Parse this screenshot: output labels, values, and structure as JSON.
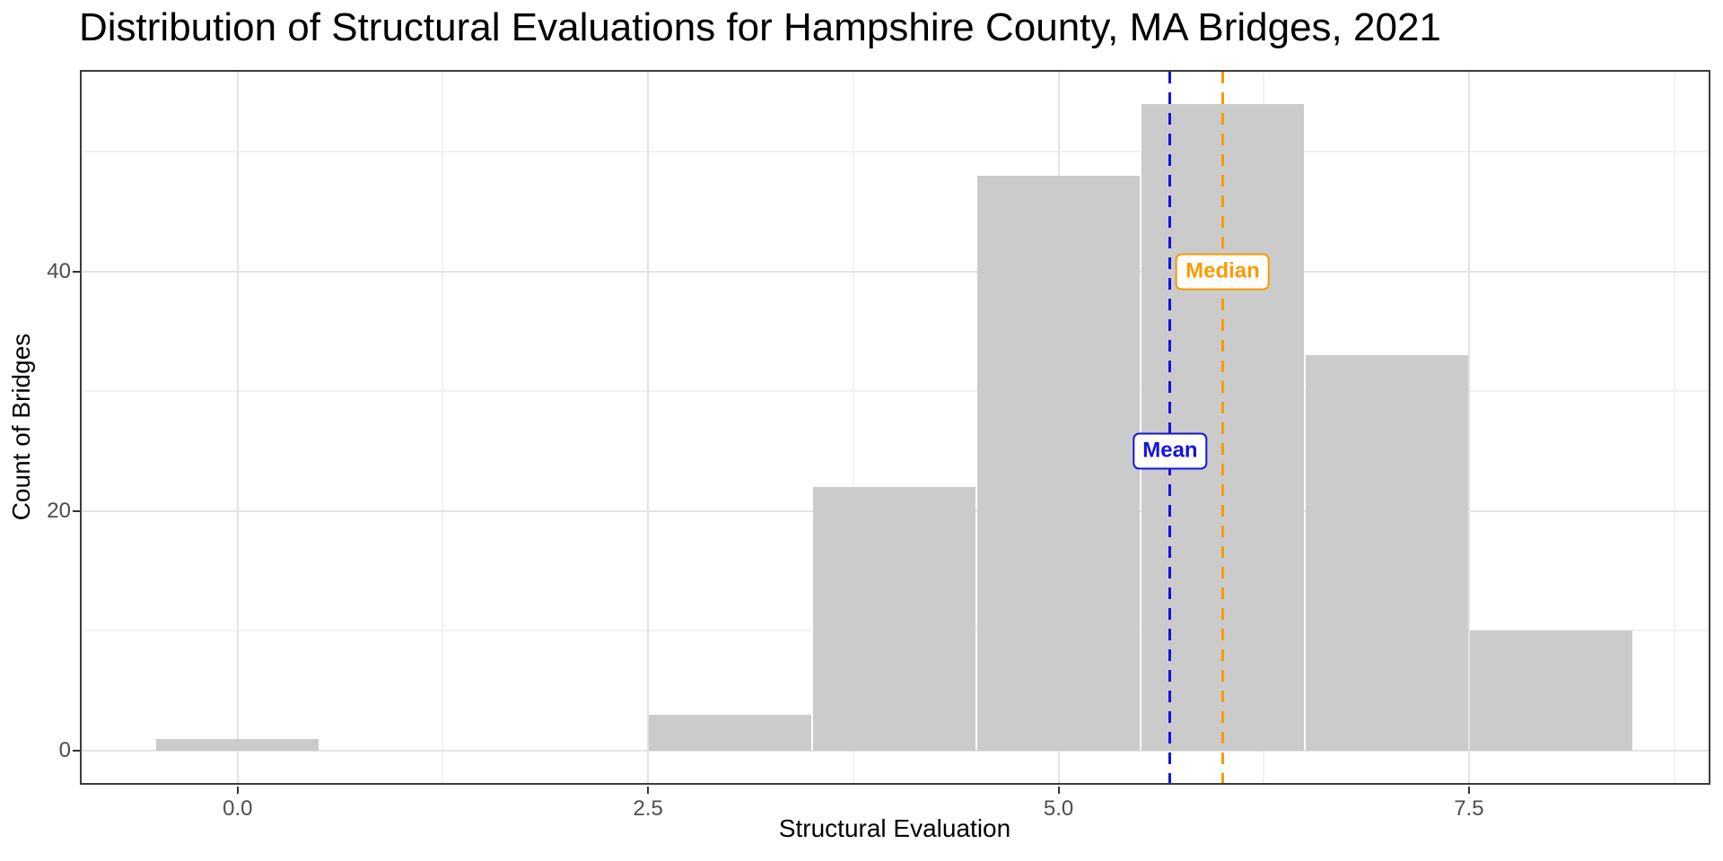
{
  "chart_data": {
    "type": "bar",
    "subtype": "histogram",
    "title": "Distribution of Structural Evaluations for Hampshire County, MA Bridges, 2021",
    "xlabel": "Structural Evaluation",
    "ylabel": "Count of Bridges",
    "bins": {
      "centers": [
        0,
        3,
        4,
        5,
        6,
        7,
        8
      ],
      "counts": [
        1,
        3,
        22,
        48,
        54,
        33,
        10
      ],
      "binwidth": 1
    },
    "x_ticks": {
      "values": [
        0,
        2.5,
        5,
        7.5
      ],
      "labels": [
        "0.0",
        "2.5",
        "5.0",
        "7.5"
      ]
    },
    "y_ticks": {
      "values": [
        0,
        20,
        40
      ],
      "labels": [
        "0",
        "20",
        "40"
      ]
    },
    "x_minor": [
      1.25,
      3.75,
      6.25,
      8.75
    ],
    "y_minor": [
      10,
      30,
      50
    ],
    "xlim": [
      -0.95,
      8.96
    ],
    "ylim": [
      -2.7,
      56.7
    ],
    "grid": "major-and-minor",
    "legend": false,
    "annotations": [
      {
        "label": "Mean",
        "x": 5.68,
        "label_y": 25,
        "color": "#1313DF",
        "line_style": "dashed"
      },
      {
        "label": "Median",
        "x": 6.0,
        "label_y": 40,
        "color": "#FB9A00",
        "line_style": "dashed"
      }
    ],
    "colors": {
      "bar_fill": "#CBCBCB",
      "panel_border": "#3C3C3C",
      "grid_major": "#E3E3E3",
      "grid_minor": "#F2F2F2",
      "tick": "#333333",
      "tick_label": "#4D4D4D",
      "axis_title": "#000000",
      "title": "#000000",
      "label_bg": "#FFFFFF"
    }
  }
}
